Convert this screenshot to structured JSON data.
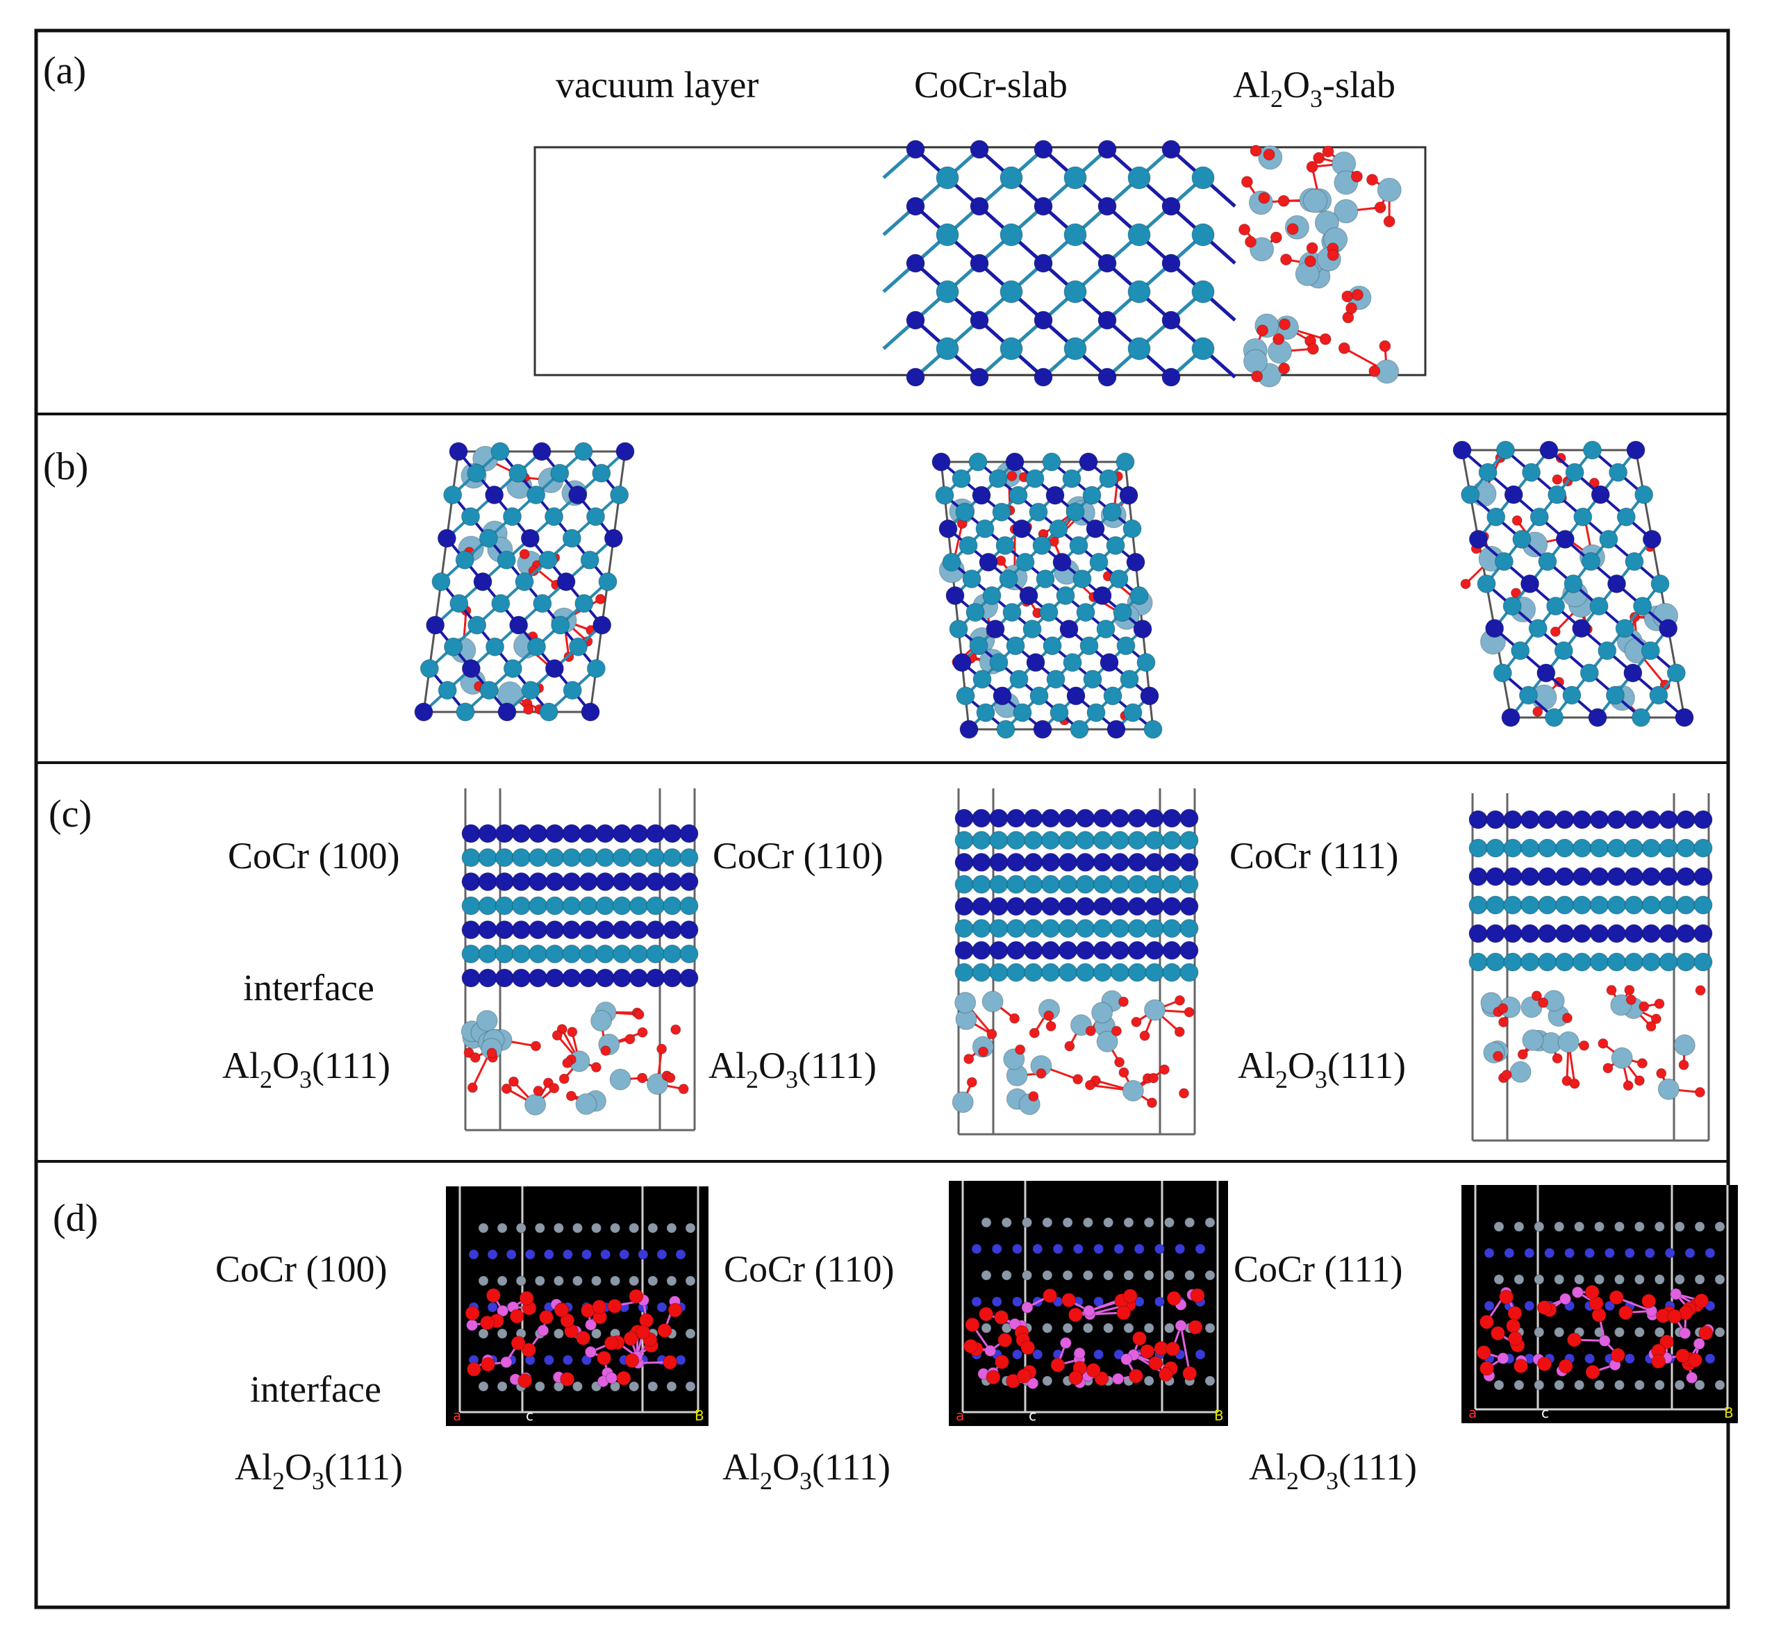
{
  "panels": {
    "a": {
      "letter": "(a)",
      "vacuum_label": "vacuum layer",
      "cocr_slab_label": "CoCr-slab",
      "al2o3_slab": {
        "pre": "Al",
        "sub1": "2",
        "mid": "O",
        "sub2": "3",
        "post": "-slab"
      }
    },
    "b": {
      "letter": "(b)"
    },
    "c": {
      "letter": "(c)",
      "cocr_100": "CoCr (100)",
      "cocr_110": "CoCr (110)",
      "cocr_111": "CoCr (111)",
      "interface": "interface",
      "al2o3": {
        "pre": "Al",
        "sub1": "2",
        "mid": "O",
        "sub2": "3",
        "post": "(111)"
      }
    },
    "d": {
      "letter": "(d)",
      "cocr_100": "CoCr (100)",
      "cocr_110": "CoCr (110)",
      "cocr_111": "CoCr (111)",
      "interface": "interface",
      "al2o3": {
        "pre": "Al",
        "sub1": "2",
        "mid": "O",
        "sub2": "3",
        "post": "(111)"
      },
      "axis_letters": [
        "a",
        "c",
        "B"
      ]
    }
  },
  "colors": {
    "frame": "#111111",
    "co_dark": "#1a1aa8",
    "cr_teal": "#1f8fb5",
    "al_light": "#7fb2cc",
    "oxygen": "#ee1c1c",
    "bond_dark": "#1a1aa8",
    "bond_teal": "#2a8ab0",
    "d_bg": "#000000",
    "d_metal_blue": "#3a3ad8",
    "d_metal_grey": "#8a98a8",
    "d_al_pink": "#e060e0",
    "d_oxygen": "#ee1010"
  }
}
